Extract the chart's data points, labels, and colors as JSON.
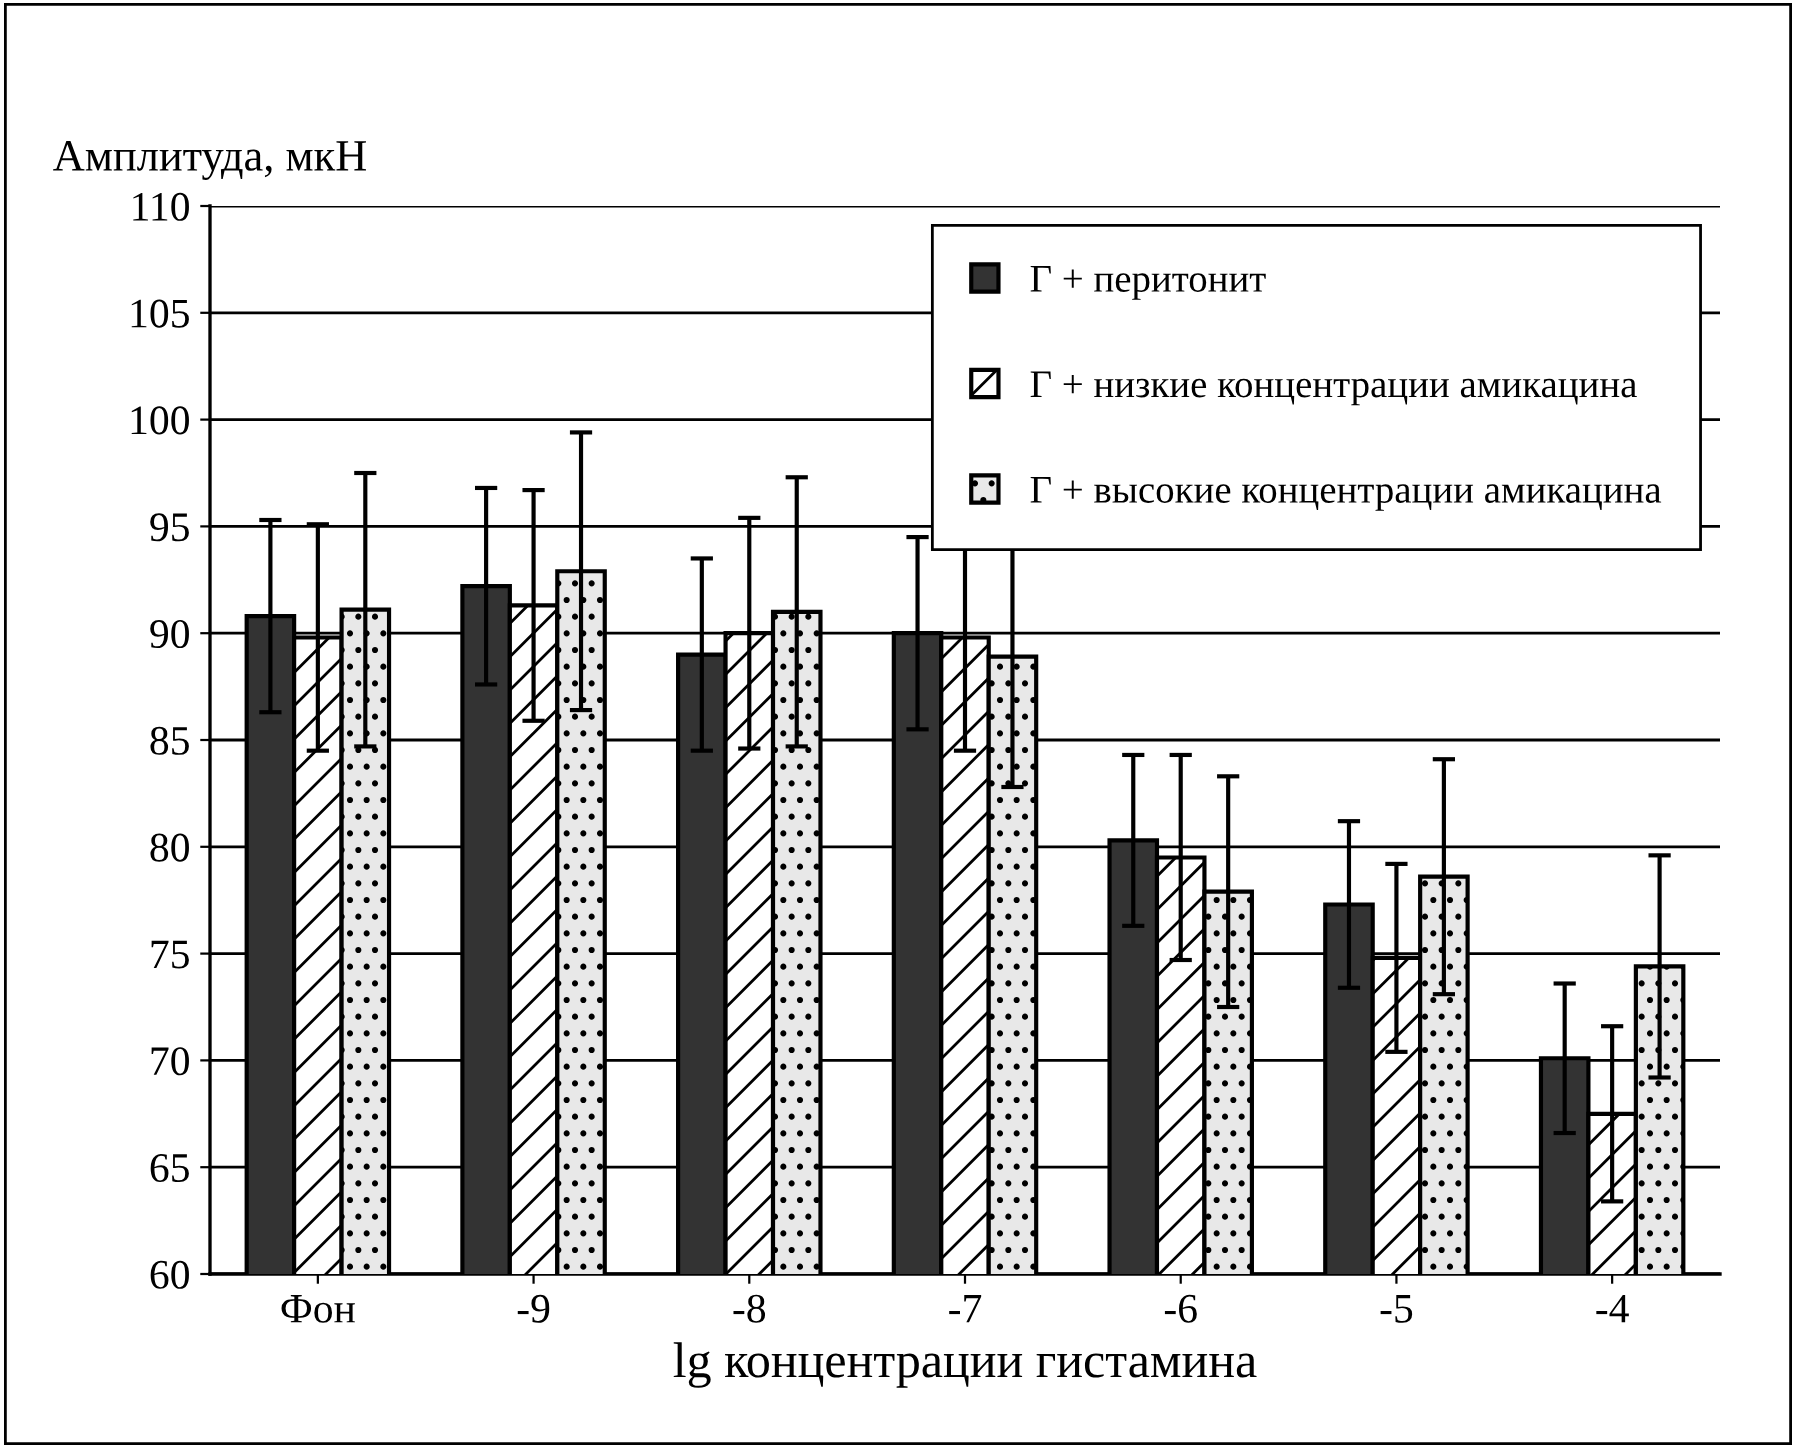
{
  "chart_data": {
    "type": "bar",
    "ylabel": "Амплитуда, мкН",
    "xlabel": "lg концентрации гистамина",
    "categories": [
      "Фон",
      "-9",
      "-8",
      "-7",
      "-6",
      "-5",
      "-4"
    ],
    "series": [
      {
        "name": "Г + перитонит",
        "color": "#333333",
        "values": [
          90.8,
          92.2,
          89.0,
          90.0,
          80.3,
          77.3,
          70.1
        ],
        "errors": [
          4.5,
          4.6,
          4.5,
          4.5,
          4.0,
          3.9,
          3.5
        ]
      },
      {
        "name": "Г + низкие концентрации амикацина",
        "color": "#ffffff",
        "values": [
          89.8,
          91.3,
          90.0,
          89.8,
          79.5,
          74.8,
          67.5
        ],
        "errors": [
          5.3,
          5.4,
          5.4,
          5.3,
          4.8,
          4.4,
          4.1
        ]
      },
      {
        "name": "Г + высокие концентрации амикацина",
        "color": "#e8e8e8",
        "values": [
          91.1,
          92.9,
          91.0,
          88.9,
          77.9,
          78.6,
          74.4
        ],
        "errors": [
          6.4,
          6.5,
          6.3,
          6.1,
          5.4,
          5.5,
          5.2
        ]
      }
    ],
    "ylim": [
      60,
      110
    ],
    "yticks": [
      60,
      65,
      70,
      75,
      80,
      85,
      90,
      95,
      100,
      105,
      110
    ],
    "grid": "y",
    "legend": "top right"
  }
}
